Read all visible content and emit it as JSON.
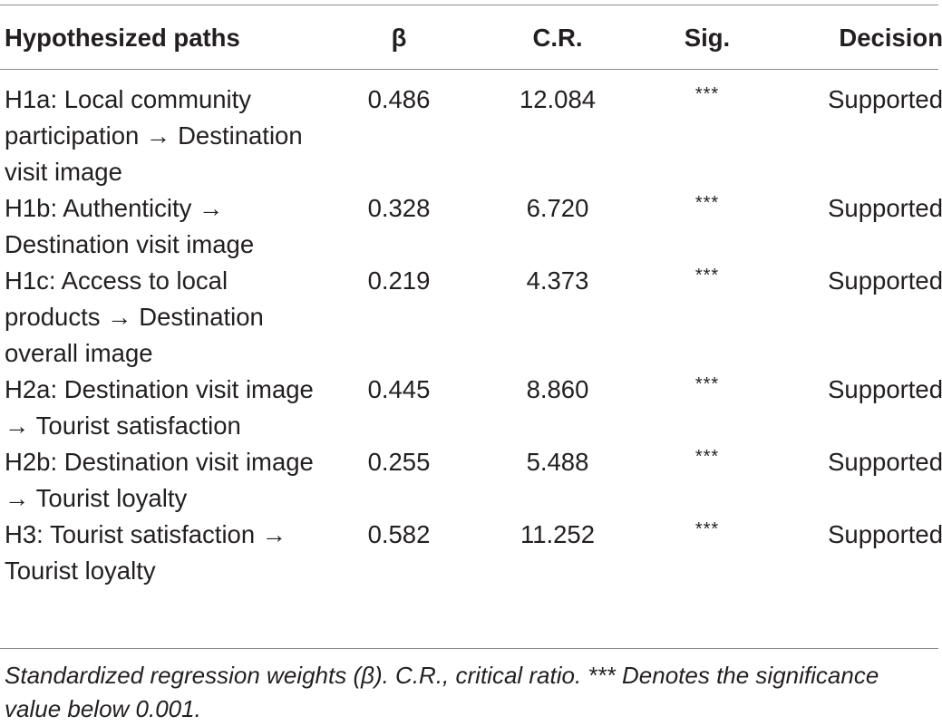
{
  "table": {
    "headers": {
      "path": "Hypothesized paths",
      "beta": "β",
      "cr": "C.R.",
      "sig": "Sig.",
      "decision": "Decision"
    },
    "rows": [
      {
        "path": "H1a: Local community participation → Destination visit image",
        "beta": "0.486",
        "cr": "12.084",
        "sig": "***",
        "decision": "Supported"
      },
      {
        "path": "H1b: Authenticity → Destination visit image",
        "beta": "0.328",
        "cr": "6.720",
        "sig": "***",
        "decision": "Supported"
      },
      {
        "path": "H1c: Access to local products → Destination overall image",
        "beta": "0.219",
        "cr": "4.373",
        "sig": "***",
        "decision": "Supported"
      },
      {
        "path": "H2a: Destination visit image → Tourist satisfaction",
        "beta": "0.445",
        "cr": "8.860",
        "sig": "***",
        "decision": "Supported"
      },
      {
        "path": "H2b: Destination visit image → Tourist loyalty",
        "beta": "0.255",
        "cr": "5.488",
        "sig": "***",
        "decision": "Supported"
      },
      {
        "path": "H3: Tourist satisfaction → Tourist loyalty",
        "beta": "0.582",
        "cr": "11.252",
        "sig": "***",
        "decision": "Supported"
      }
    ]
  },
  "footnote": "Standardized regression weights (β). C.R., critical ratio. *** Denotes the significance value below 0.001."
}
